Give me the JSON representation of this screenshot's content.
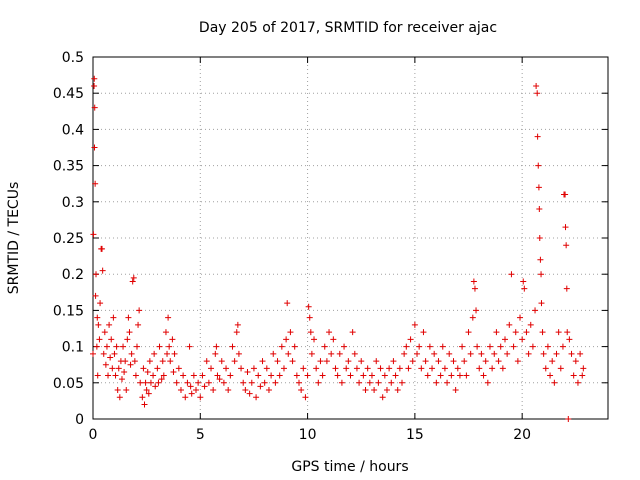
{
  "chart_data": {
    "type": "scatter",
    "title": "Day 205 of 2017, SRMTID for receiver ajac",
    "xlabel": "GPS time / hours",
    "ylabel": "SRMTID / TECUs",
    "xlim": [
      0,
      24
    ],
    "ylim": [
      0,
      0.5
    ],
    "xticks": [
      0,
      5,
      10,
      15,
      20
    ],
    "yticks": [
      0,
      0.05,
      0.1,
      0.15,
      0.2,
      0.25,
      0.3,
      0.35,
      0.4,
      0.45,
      0.5
    ],
    "grid": true,
    "marker": "+",
    "color": "#e00000",
    "series": [
      {
        "name": "SRMTID",
        "points": [
          [
            0.0,
            0.09
          ],
          [
            0.02,
            0.255
          ],
          [
            0.05,
            0.46
          ],
          [
            0.06,
            0.47
          ],
          [
            0.07,
            0.375
          ],
          [
            0.08,
            0.43
          ],
          [
            0.1,
            0.325
          ],
          [
            0.12,
            0.17
          ],
          [
            0.14,
            0.2
          ],
          [
            0.18,
            0.1
          ],
          [
            0.2,
            0.14
          ],
          [
            0.22,
            0.06
          ],
          [
            0.25,
            0.13
          ],
          [
            0.3,
            0.11
          ],
          [
            0.33,
            0.16
          ],
          [
            0.38,
            0.235
          ],
          [
            0.42,
            0.235
          ],
          [
            0.45,
            0.205
          ],
          [
            0.5,
            0.09
          ],
          [
            0.55,
            0.12
          ],
          [
            0.6,
            0.075
          ],
          [
            0.65,
            0.1
          ],
          [
            0.7,
            0.06
          ],
          [
            0.75,
            0.13
          ],
          [
            0.8,
            0.085
          ],
          [
            0.85,
            0.11
          ],
          [
            0.9,
            0.07
          ],
          [
            0.95,
            0.14
          ],
          [
            1.0,
            0.09
          ],
          [
            1.05,
            0.06
          ],
          [
            1.1,
            0.1
          ],
          [
            1.15,
            0.04
          ],
          [
            1.2,
            0.07
          ],
          [
            1.25,
            0.03
          ],
          [
            1.3,
            0.08
          ],
          [
            1.35,
            0.055
          ],
          [
            1.4,
            0.1
          ],
          [
            1.45,
            0.065
          ],
          [
            1.5,
            0.08
          ],
          [
            1.55,
            0.04
          ],
          [
            1.6,
            0.11
          ],
          [
            1.65,
            0.14
          ],
          [
            1.7,
            0.12
          ],
          [
            1.75,
            0.075
          ],
          [
            1.8,
            0.09
          ],
          [
            1.85,
            0.19
          ],
          [
            1.9,
            0.195
          ],
          [
            1.95,
            0.08
          ],
          [
            2.0,
            0.06
          ],
          [
            2.05,
            0.1
          ],
          [
            2.1,
            0.13
          ],
          [
            2.15,
            0.15
          ],
          [
            2.2,
            0.05
          ],
          [
            2.3,
            0.03
          ],
          [
            2.35,
            0.07
          ],
          [
            2.4,
            0.02
          ],
          [
            2.45,
            0.05
          ],
          [
            2.5,
            0.04
          ],
          [
            2.55,
            0.065
          ],
          [
            2.6,
            0.035
          ],
          [
            2.65,
            0.08
          ],
          [
            2.7,
            0.05
          ],
          [
            2.8,
            0.06
          ],
          [
            2.85,
            0.09
          ],
          [
            2.9,
            0.045
          ],
          [
            3.0,
            0.07
          ],
          [
            3.05,
            0.05
          ],
          [
            3.1,
            0.1
          ],
          [
            3.2,
            0.055
          ],
          [
            3.25,
            0.08
          ],
          [
            3.3,
            0.06
          ],
          [
            3.4,
            0.12
          ],
          [
            3.45,
            0.09
          ],
          [
            3.5,
            0.14
          ],
          [
            3.55,
            0.1
          ],
          [
            3.6,
            0.08
          ],
          [
            3.7,
            0.11
          ],
          [
            3.75,
            0.065
          ],
          [
            3.8,
            0.09
          ],
          [
            3.9,
            0.05
          ],
          [
            4.0,
            0.07
          ],
          [
            4.1,
            0.04
          ],
          [
            4.2,
            0.06
          ],
          [
            4.3,
            0.03
          ],
          [
            4.4,
            0.05
          ],
          [
            4.5,
            0.1
          ],
          [
            4.55,
            0.045
          ],
          [
            4.6,
            0.035
          ],
          [
            4.7,
            0.06
          ],
          [
            4.8,
            0.04
          ],
          [
            4.9,
            0.05
          ],
          [
            5.0,
            0.03
          ],
          [
            5.1,
            0.06
          ],
          [
            5.2,
            0.045
          ],
          [
            5.3,
            0.08
          ],
          [
            5.4,
            0.05
          ],
          [
            5.5,
            0.07
          ],
          [
            5.6,
            0.04
          ],
          [
            5.7,
            0.09
          ],
          [
            5.75,
            0.1
          ],
          [
            5.8,
            0.06
          ],
          [
            5.9,
            0.055
          ],
          [
            6.0,
            0.08
          ],
          [
            6.1,
            0.05
          ],
          [
            6.2,
            0.07
          ],
          [
            6.3,
            0.04
          ],
          [
            6.4,
            0.06
          ],
          [
            6.5,
            0.1
          ],
          [
            6.6,
            0.08
          ],
          [
            6.7,
            0.12
          ],
          [
            6.75,
            0.13
          ],
          [
            6.8,
            0.09
          ],
          [
            6.9,
            0.07
          ],
          [
            7.0,
            0.05
          ],
          [
            7.1,
            0.04
          ],
          [
            7.2,
            0.065
          ],
          [
            7.3,
            0.035
          ],
          [
            7.4,
            0.05
          ],
          [
            7.5,
            0.07
          ],
          [
            7.6,
            0.03
          ],
          [
            7.7,
            0.06
          ],
          [
            7.8,
            0.045
          ],
          [
            7.9,
            0.08
          ],
          [
            8.0,
            0.05
          ],
          [
            8.1,
            0.07
          ],
          [
            8.2,
            0.04
          ],
          [
            8.3,
            0.06
          ],
          [
            8.4,
            0.09
          ],
          [
            8.5,
            0.05
          ],
          [
            8.6,
            0.08
          ],
          [
            8.7,
            0.06
          ],
          [
            8.8,
            0.1
          ],
          [
            8.9,
            0.07
          ],
          [
            9.0,
            0.11
          ],
          [
            9.05,
            0.16
          ],
          [
            9.1,
            0.09
          ],
          [
            9.2,
            0.12
          ],
          [
            9.3,
            0.08
          ],
          [
            9.4,
            0.1
          ],
          [
            9.5,
            0.06
          ],
          [
            9.6,
            0.05
          ],
          [
            9.7,
            0.04
          ],
          [
            9.8,
            0.07
          ],
          [
            9.9,
            0.03
          ],
          [
            10.0,
            0.06
          ],
          [
            10.05,
            0.155
          ],
          [
            10.1,
            0.14
          ],
          [
            10.15,
            0.12
          ],
          [
            10.2,
            0.09
          ],
          [
            10.3,
            0.11
          ],
          [
            10.4,
            0.07
          ],
          [
            10.5,
            0.05
          ],
          [
            10.6,
            0.08
          ],
          [
            10.7,
            0.06
          ],
          [
            10.8,
            0.1
          ],
          [
            10.9,
            0.08
          ],
          [
            11.0,
            0.12
          ],
          [
            11.1,
            0.09
          ],
          [
            11.2,
            0.11
          ],
          [
            11.3,
            0.07
          ],
          [
            11.4,
            0.06
          ],
          [
            11.5,
            0.09
          ],
          [
            11.6,
            0.05
          ],
          [
            11.7,
            0.1
          ],
          [
            11.8,
            0.07
          ],
          [
            11.9,
            0.08
          ],
          [
            12.0,
            0.06
          ],
          [
            12.1,
            0.12
          ],
          [
            12.2,
            0.09
          ],
          [
            12.3,
            0.07
          ],
          [
            12.4,
            0.05
          ],
          [
            12.5,
            0.08
          ],
          [
            12.6,
            0.06
          ],
          [
            12.7,
            0.04
          ],
          [
            12.8,
            0.07
          ],
          [
            12.9,
            0.05
          ],
          [
            13.0,
            0.06
          ],
          [
            13.1,
            0.04
          ],
          [
            13.2,
            0.08
          ],
          [
            13.3,
            0.05
          ],
          [
            13.4,
            0.07
          ],
          [
            13.5,
            0.03
          ],
          [
            13.6,
            0.06
          ],
          [
            13.7,
            0.04
          ],
          [
            13.8,
            0.07
          ],
          [
            13.9,
            0.05
          ],
          [
            14.0,
            0.08
          ],
          [
            14.1,
            0.06
          ],
          [
            14.2,
            0.04
          ],
          [
            14.3,
            0.07
          ],
          [
            14.4,
            0.05
          ],
          [
            14.5,
            0.09
          ],
          [
            14.6,
            0.1
          ],
          [
            14.7,
            0.07
          ],
          [
            14.8,
            0.11
          ],
          [
            14.9,
            0.08
          ],
          [
            15.0,
            0.13
          ],
          [
            15.1,
            0.09
          ],
          [
            15.2,
            0.1
          ],
          [
            15.3,
            0.07
          ],
          [
            15.4,
            0.12
          ],
          [
            15.5,
            0.08
          ],
          [
            15.6,
            0.06
          ],
          [
            15.7,
            0.1
          ],
          [
            15.8,
            0.07
          ],
          [
            15.9,
            0.09
          ],
          [
            16.0,
            0.05
          ],
          [
            16.1,
            0.08
          ],
          [
            16.2,
            0.06
          ],
          [
            16.3,
            0.1
          ],
          [
            16.4,
            0.07
          ],
          [
            16.5,
            0.05
          ],
          [
            16.6,
            0.09
          ],
          [
            16.7,
            0.06
          ],
          [
            16.8,
            0.08
          ],
          [
            16.9,
            0.04
          ],
          [
            17.0,
            0.07
          ],
          [
            17.1,
            0.06
          ],
          [
            17.2,
            0.1
          ],
          [
            17.3,
            0.08
          ],
          [
            17.4,
            0.06
          ],
          [
            17.5,
            0.12
          ],
          [
            17.6,
            0.09
          ],
          [
            17.7,
            0.14
          ],
          [
            17.75,
            0.19
          ],
          [
            17.8,
            0.18
          ],
          [
            17.85,
            0.15
          ],
          [
            17.9,
            0.1
          ],
          [
            18.0,
            0.07
          ],
          [
            18.1,
            0.09
          ],
          [
            18.2,
            0.06
          ],
          [
            18.3,
            0.08
          ],
          [
            18.4,
            0.05
          ],
          [
            18.5,
            0.1
          ],
          [
            18.6,
            0.07
          ],
          [
            18.7,
            0.09
          ],
          [
            18.8,
            0.12
          ],
          [
            18.9,
            0.08
          ],
          [
            19.0,
            0.1
          ],
          [
            19.1,
            0.07
          ],
          [
            19.2,
            0.11
          ],
          [
            19.3,
            0.09
          ],
          [
            19.4,
            0.13
          ],
          [
            19.5,
            0.2
          ],
          [
            19.6,
            0.1
          ],
          [
            19.7,
            0.12
          ],
          [
            19.8,
            0.08
          ],
          [
            19.9,
            0.14
          ],
          [
            20.0,
            0.11
          ],
          [
            20.05,
            0.19
          ],
          [
            20.1,
            0.18
          ],
          [
            20.2,
            0.12
          ],
          [
            20.3,
            0.09
          ],
          [
            20.4,
            0.13
          ],
          [
            20.5,
            0.1
          ],
          [
            20.6,
            0.15
          ],
          [
            20.65,
            0.46
          ],
          [
            20.7,
            0.45
          ],
          [
            20.72,
            0.39
          ],
          [
            20.75,
            0.35
          ],
          [
            20.78,
            0.32
          ],
          [
            20.8,
            0.29
          ],
          [
            20.82,
            0.25
          ],
          [
            20.85,
            0.22
          ],
          [
            20.88,
            0.2
          ],
          [
            20.9,
            0.16
          ],
          [
            20.95,
            0.12
          ],
          [
            21.0,
            0.09
          ],
          [
            21.1,
            0.07
          ],
          [
            21.2,
            0.1
          ],
          [
            21.3,
            0.06
          ],
          [
            21.4,
            0.08
          ],
          [
            21.5,
            0.05
          ],
          [
            21.6,
            0.09
          ],
          [
            21.7,
            0.12
          ],
          [
            21.8,
            0.07
          ],
          [
            21.9,
            0.1
          ],
          [
            21.95,
            0.31
          ],
          [
            22.0,
            0.31
          ],
          [
            22.02,
            0.265
          ],
          [
            22.05,
            0.24
          ],
          [
            22.08,
            0.18
          ],
          [
            22.1,
            0.12
          ],
          [
            22.15,
            0.0
          ],
          [
            22.2,
            0.11
          ],
          [
            22.3,
            0.09
          ],
          [
            22.4,
            0.06
          ],
          [
            22.5,
            0.08
          ],
          [
            22.6,
            0.05
          ],
          [
            22.7,
            0.09
          ],
          [
            22.8,
            0.06
          ],
          [
            22.85,
            0.07
          ]
        ]
      }
    ]
  }
}
